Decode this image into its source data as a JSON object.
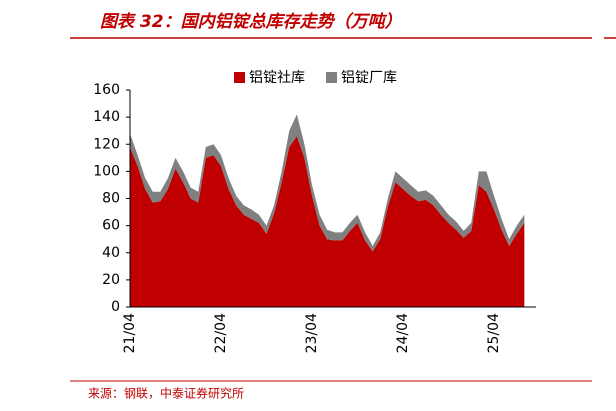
{
  "chart_data": {
    "type": "stacked_area",
    "title": "图表 32：国内铝锭总库存走势（万吨）",
    "source": "来源：钢联，中泰证券研究所",
    "categories": [
      "21/04",
      null,
      null,
      null,
      null,
      null,
      null,
      null,
      null,
      null,
      null,
      null,
      "22/04",
      null,
      null,
      null,
      null,
      null,
      null,
      null,
      null,
      null,
      null,
      null,
      "23/04",
      null,
      null,
      null,
      null,
      null,
      null,
      null,
      null,
      null,
      null,
      null,
      "24/04",
      null,
      null,
      null,
      null,
      null,
      null,
      null,
      null,
      null,
      null,
      null,
      "25/04",
      null,
      null,
      null,
      null
    ],
    "series": [
      {
        "name": "铝锭社库",
        "color": "#c00000",
        "values": [
          118,
          104,
          87,
          77,
          78,
          87,
          102,
          92,
          80,
          77,
          110,
          112,
          104,
          87,
          75,
          68,
          65,
          62,
          54,
          69,
          92,
          118,
          126,
          110,
          82,
          60,
          50,
          49,
          49,
          56,
          62,
          49,
          41,
          50,
          74,
          92,
          87,
          82,
          78,
          79,
          75,
          68,
          62,
          57,
          51,
          56,
          90,
          85,
          72,
          57,
          45,
          54,
          62
        ]
      },
      {
        "name": "铝锭厂库",
        "color": "#808080",
        "values": [
          10,
          8,
          8,
          8,
          7,
          8,
          8,
          8,
          8,
          8,
          8,
          8,
          8,
          8,
          7,
          7,
          7,
          6,
          6,
          6,
          8,
          12,
          16,
          10,
          8,
          8,
          7,
          6,
          6,
          6,
          6,
          6,
          4,
          5,
          6,
          8,
          8,
          8,
          7,
          7,
          7,
          7,
          6,
          6,
          5,
          6,
          10,
          15,
          10,
          8,
          5,
          6,
          6
        ]
      }
    ],
    "ylim": [
      0,
      160
    ],
    "yticks": [
      0,
      20,
      40,
      60,
      80,
      100,
      120,
      140,
      160
    ],
    "legend": "top"
  }
}
